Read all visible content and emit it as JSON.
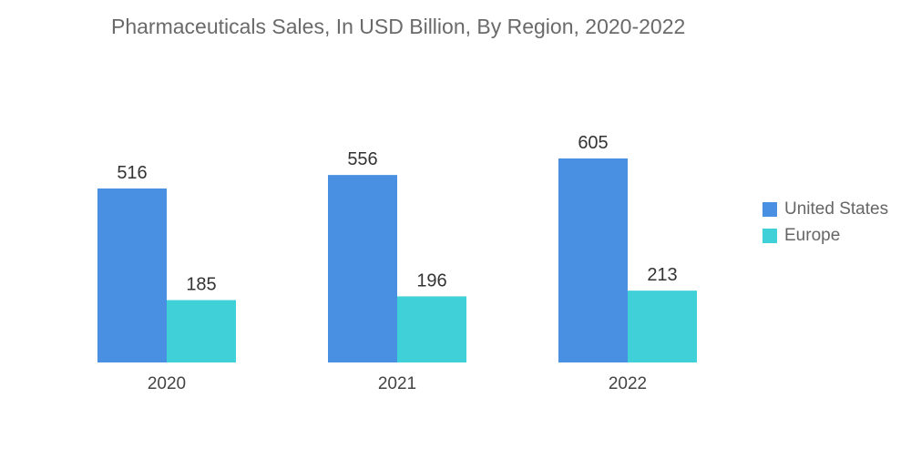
{
  "chart_data": {
    "type": "bar",
    "title": "Pharmaceuticals Sales, In USD Billion, By Region, 2020-2022",
    "categories": [
      "2020",
      "2021",
      "2022"
    ],
    "series": [
      {
        "name": "United States",
        "values": [
          516,
          556,
          605
        ],
        "color": "#4a90e2"
      },
      {
        "name": "Europe",
        "values": [
          185,
          196,
          213
        ],
        "color": "#3fd0d8"
      }
    ],
    "xlabel": "",
    "ylabel": "",
    "ylim": [
      0,
      605
    ],
    "grid": false,
    "legend_position": "right"
  }
}
